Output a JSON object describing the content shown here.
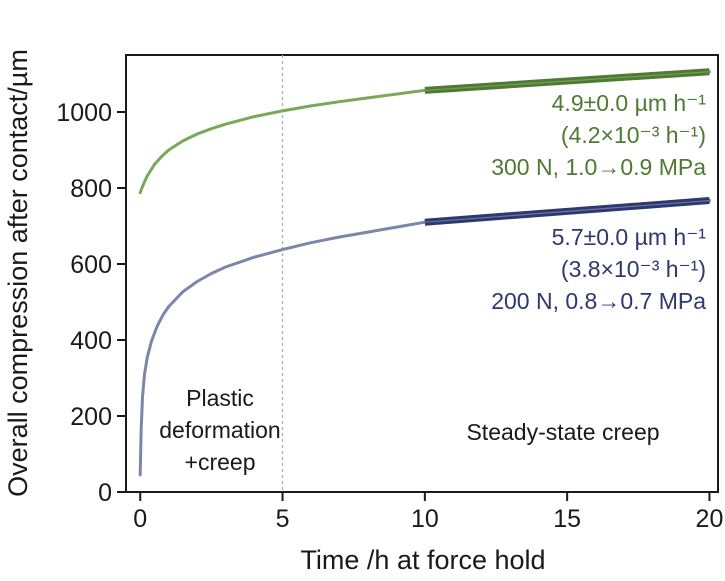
{
  "chart_data": {
    "type": "line",
    "title": "",
    "xlabel": "Time /h at force hold",
    "ylabel": "Overall compression after contact/µm",
    "xlim": [
      -0.5,
      20.3
    ],
    "ylim": [
      0,
      1150
    ],
    "xticks": [
      0,
      5,
      10,
      15,
      20
    ],
    "yticks": [
      0,
      200,
      400,
      600,
      800,
      1000
    ],
    "grid": false,
    "divider_x": 5,
    "series": [
      {
        "name": "300 N, 1.0→0.9 MPa",
        "color": "#7aa85a",
        "fit_color": "#4e7a34",
        "x": [
          0,
          0.1,
          0.25,
          0.5,
          0.75,
          1,
          1.5,
          2,
          2.5,
          3,
          4,
          5,
          6,
          7,
          8,
          9,
          10,
          12,
          14,
          16,
          18,
          20
        ],
        "y": [
          788,
          808,
          832,
          862,
          883,
          900,
          924,
          942,
          956,
          968,
          988,
          1003,
          1016,
          1027,
          1037,
          1047,
          1057,
          1067,
          1077,
          1087,
          1097,
          1106
        ],
        "fit": {
          "x": [
            10,
            20
          ],
          "y": [
            1057,
            1106
          ]
        }
      },
      {
        "name": "200 N, 0.8→0.7 MPa",
        "color": "#7c86aa",
        "fit_color": "#2e3870",
        "x": [
          0,
          0.03,
          0.08,
          0.15,
          0.25,
          0.4,
          0.6,
          0.8,
          1,
          1.5,
          2,
          2.5,
          3,
          4,
          5,
          6,
          7,
          8,
          9,
          10,
          12,
          14,
          16,
          18,
          20
        ],
        "y": [
          45,
          160,
          250,
          310,
          355,
          398,
          437,
          466,
          488,
          527,
          554,
          575,
          592,
          618,
          638,
          656,
          671,
          684,
          697,
          710,
          721,
          732,
          743,
          754,
          767
        ],
        "fit": {
          "x": [
            10,
            20
          ],
          "y": [
            710,
            767
          ]
        }
      }
    ],
    "annotations": {
      "upper": {
        "line1": "4.9±0.0 µm h⁻¹",
        "line2": "(4.2×10⁻³ h⁻¹)",
        "line3": "300 N, 1.0→0.9 MPa",
        "color": "#4e7a34"
      },
      "lower": {
        "line1": "5.7±0.0 µm h⁻¹",
        "line2": "(3.8×10⁻³ h⁻¹)",
        "line3": "200 N, 0.8→0.7 MPa",
        "color": "#2e3870"
      }
    },
    "regions": {
      "left": [
        "Plastic",
        "deformation",
        "+creep"
      ],
      "right": "Steady-state creep"
    }
  }
}
